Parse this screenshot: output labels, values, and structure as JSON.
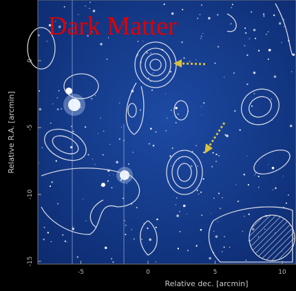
{
  "title": "Dark Matter",
  "x_axis": {
    "label": "Relative dec. [arcmin]",
    "ticks": [
      -5,
      0,
      5,
      10
    ]
  },
  "y_axis": {
    "label": "Relative R.A. [arcmin]",
    "ticks": [
      0,
      -5,
      -10,
      -15
    ]
  }
}
